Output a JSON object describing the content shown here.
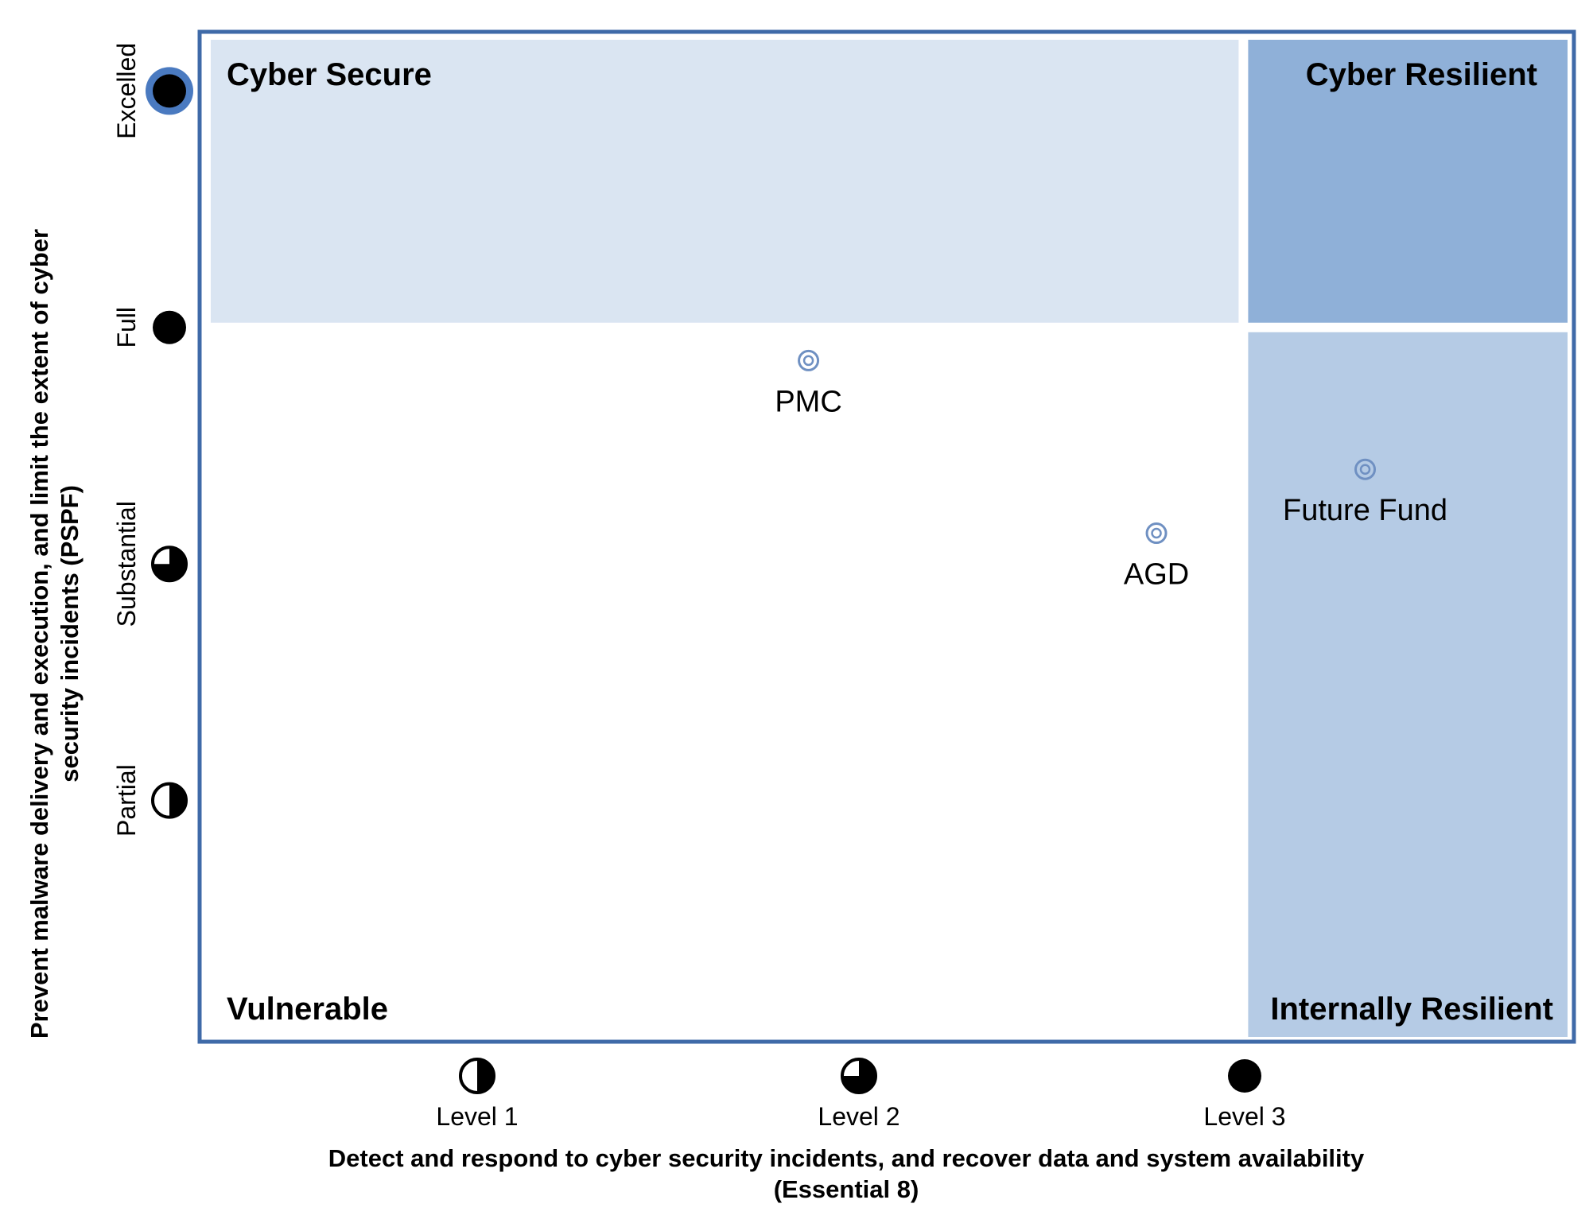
{
  "chart_data": {
    "type": "scatter",
    "title": "",
    "xlabel": "Detect and respond to cyber security incidents, and recover data and system availability",
    "xlabel_line2": "(Essential 8)",
    "ylabel": "Prevent malware delivery and execution, and limit the extent of cyber",
    "ylabel_line2": "security incidents (PSPF)",
    "x_ticks": [
      {
        "label": "Level 1",
        "value": 1,
        "icon": "half-circle-icon"
      },
      {
        "label": "Level 2",
        "value": 2,
        "icon": "three-quarter-circle-icon"
      },
      {
        "label": "Level 3",
        "value": 3,
        "icon": "full-circle-icon"
      }
    ],
    "y_ticks": [
      {
        "label": "Partial",
        "value": 1,
        "icon": "half-circle-icon"
      },
      {
        "label": "Substantial",
        "value": 2,
        "icon": "three-quarter-circle-icon"
      },
      {
        "label": "Full",
        "value": 3,
        "icon": "full-circle-icon"
      },
      {
        "label": "Excelled",
        "value": 4,
        "icon": "full-circle-ringed-icon"
      }
    ],
    "xlim": [
      0,
      3.95
    ],
    "ylim": [
      -0.02,
      4.25
    ],
    "quadrants": [
      {
        "label": "Cyber Secure",
        "x": [
          0,
          3
        ],
        "y": [
          3,
          4.25
        ],
        "color": "#dae5f2",
        "label_pos": "top-left"
      },
      {
        "label": "Cyber Resilient",
        "x": [
          3,
          3.95
        ],
        "y": [
          3,
          4.25
        ],
        "color": "#8fb0d8",
        "label_pos": "top-right"
      },
      {
        "label": "Internally Resilient",
        "x": [
          3,
          3.95
        ],
        "y": [
          -0.02,
          3
        ],
        "color": "#b5cbe5",
        "label_pos": "bottom-right"
      },
      {
        "label": "Vulnerable",
        "x": [
          0,
          3
        ],
        "y": [
          -0.02,
          3
        ],
        "color": "#ffffff",
        "label_pos": "bottom-left"
      }
    ],
    "points": [
      {
        "label": "PMC",
        "x": 1.75,
        "y": 2.86
      },
      {
        "label": "AGD",
        "x": 2.75,
        "y": 2.13
      },
      {
        "label": "Future Fund",
        "x": 3.35,
        "y": 2.4
      }
    ],
    "grid": false,
    "legend": "none",
    "colors": {
      "frame": "#3f6aa8",
      "marker": "#6f90c2",
      "ring": "#4a7ac0"
    }
  }
}
